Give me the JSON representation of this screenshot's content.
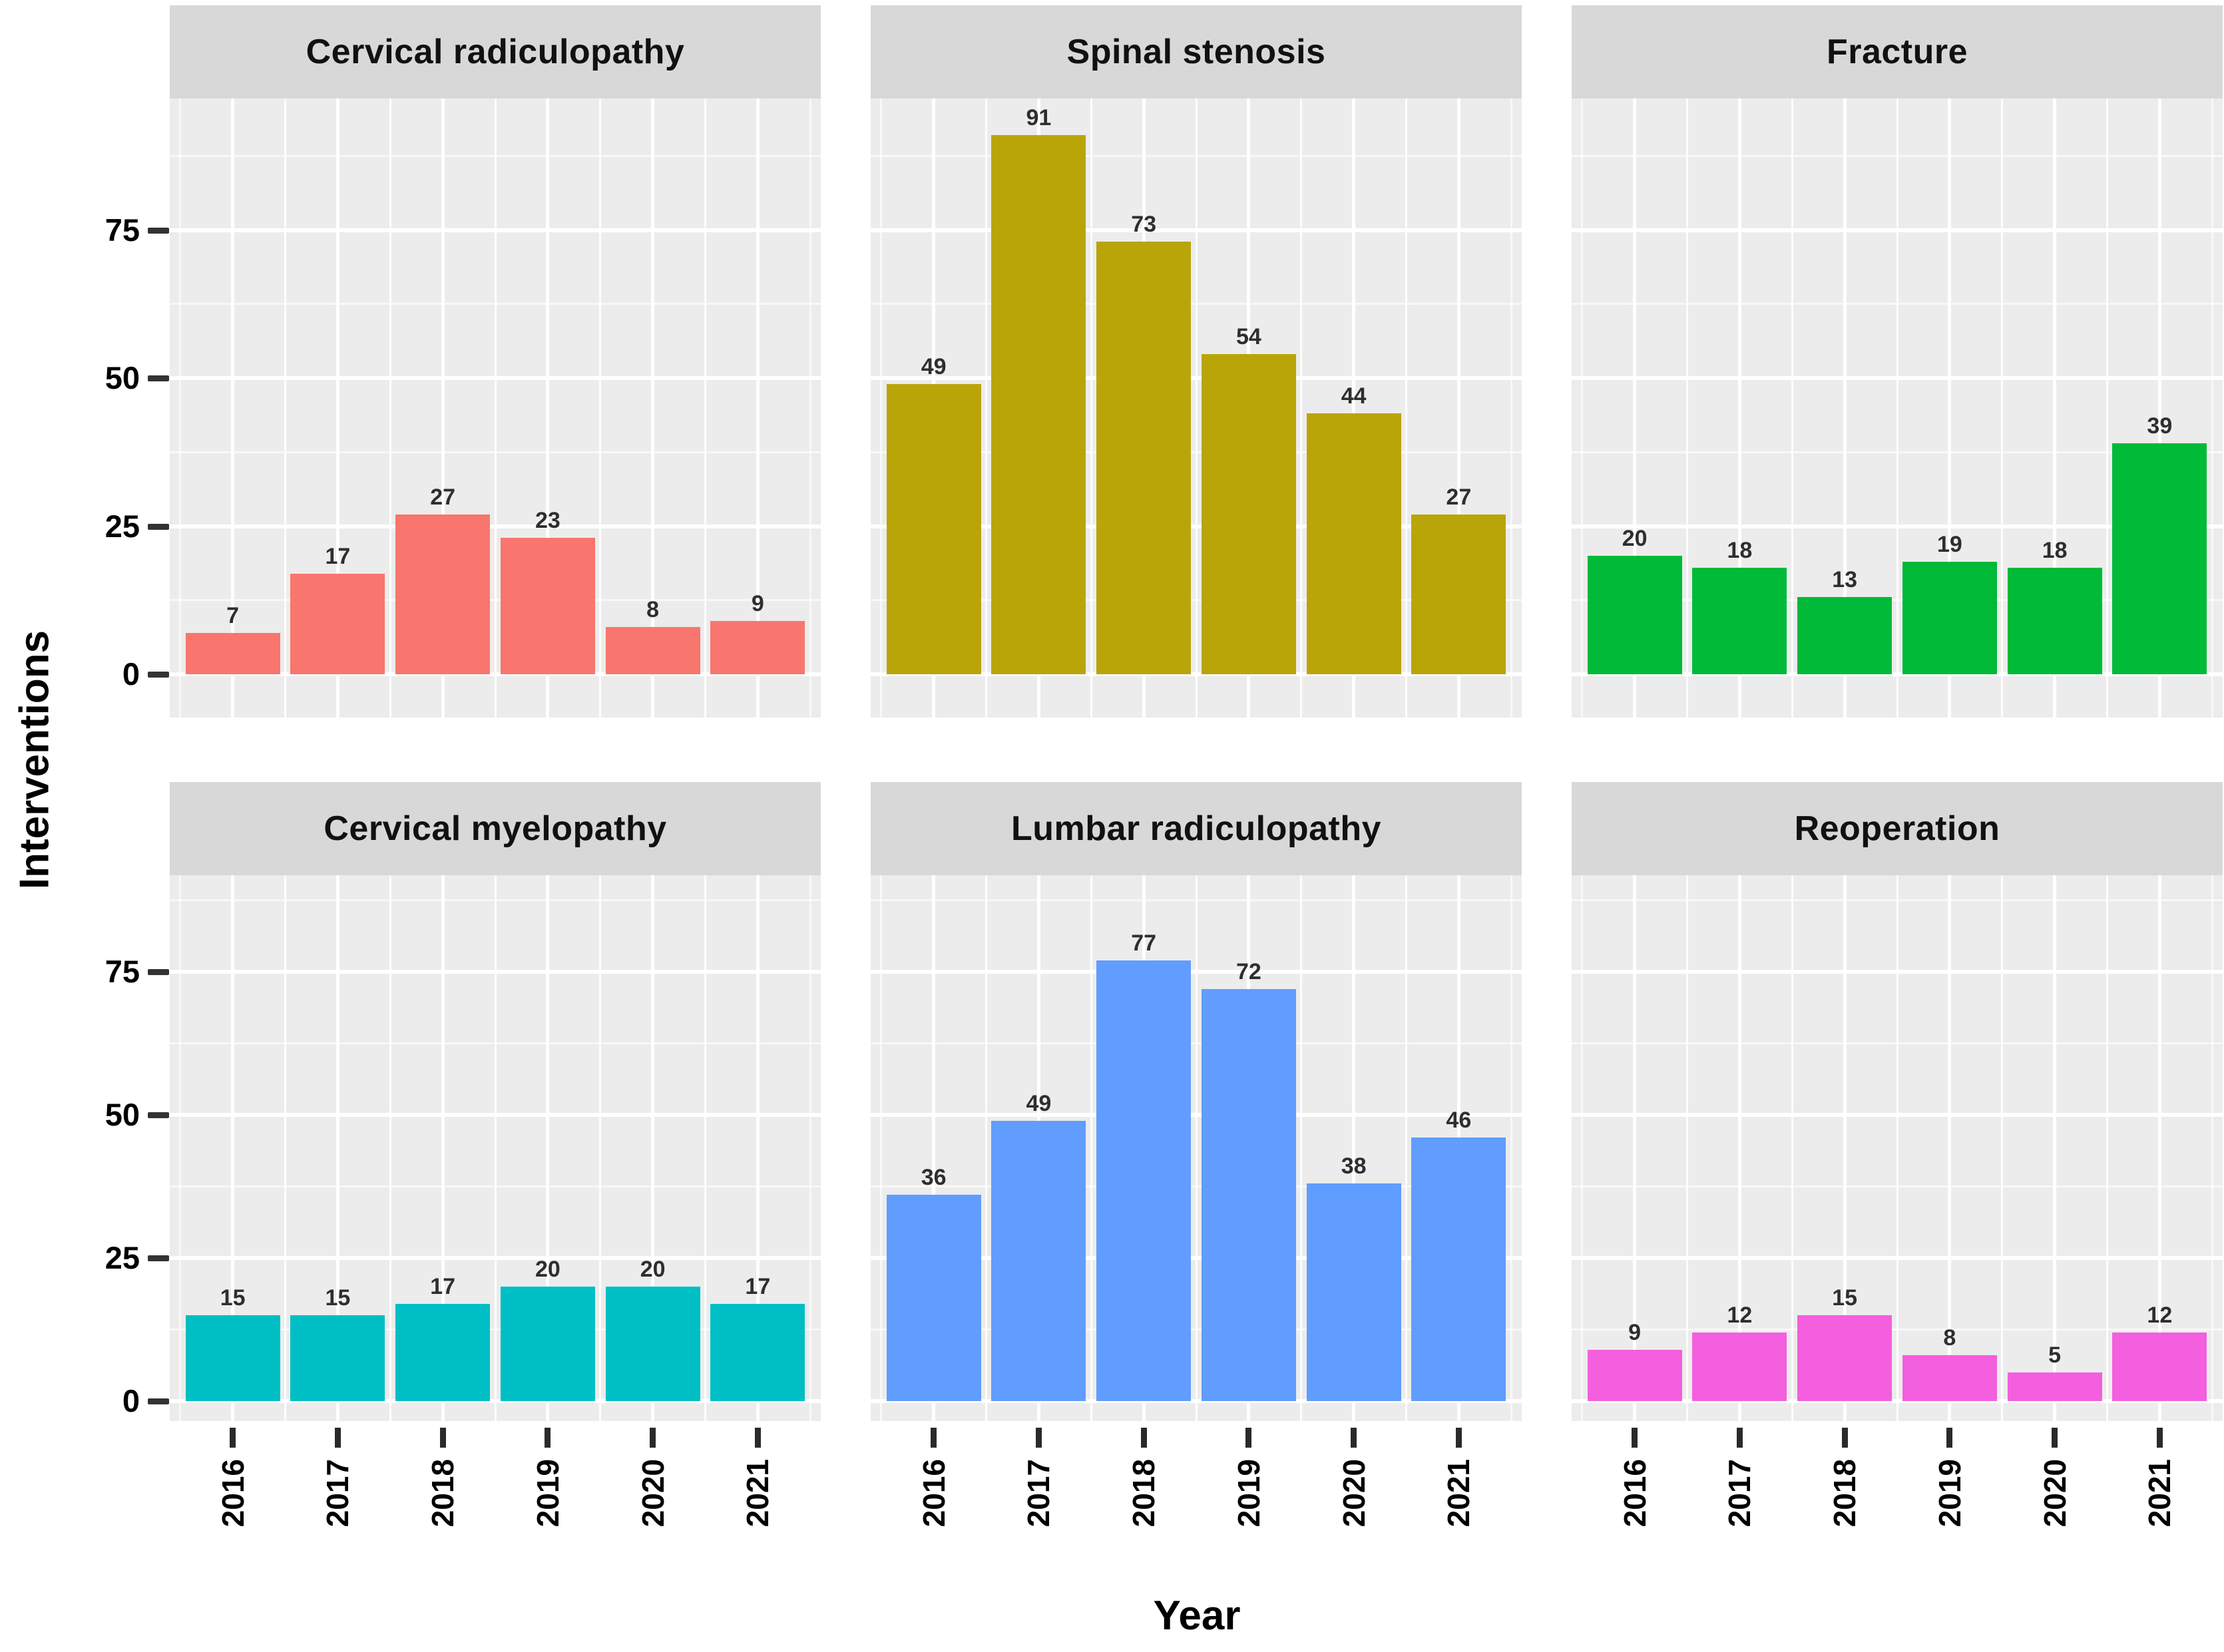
{
  "chart_data": {
    "type": "bar",
    "title": "",
    "xlabel": "Year",
    "ylabel": "Interventions",
    "categories": [
      "2016",
      "2017",
      "2018",
      "2019",
      "2020",
      "2021"
    ],
    "y_ticks": [
      0,
      25,
      50,
      75
    ],
    "ylim": [
      0,
      97
    ],
    "grid": true,
    "legend": false,
    "facet_layout": "2 rows x 3 columns",
    "facets": [
      {
        "title": "Cervical radiculopathy",
        "color": "#F8766D",
        "values": [
          7,
          17,
          27,
          23,
          8,
          9
        ]
      },
      {
        "title": "Spinal stenosis",
        "color": "#B9A508",
        "values": [
          49,
          91,
          73,
          54,
          44,
          27
        ]
      },
      {
        "title": "Fracture",
        "color": "#00BA38",
        "values": [
          20,
          18,
          13,
          19,
          18,
          39
        ]
      },
      {
        "title": "Cervical myelopathy",
        "color": "#00BFC4",
        "values": [
          15,
          15,
          17,
          20,
          20,
          17
        ]
      },
      {
        "title": "Lumbar radiculopathy",
        "color": "#619CFF",
        "values": [
          36,
          49,
          77,
          72,
          38,
          46
        ]
      },
      {
        "title": "Reoperation",
        "color": "#F35FDE",
        "values": [
          9,
          12,
          15,
          8,
          5,
          12
        ]
      }
    ],
    "panel_bg": "#ECECEC",
    "strip_bg": "#D8D8D8",
    "gridline_color": "#FFFFFF",
    "tick_color": "#333333",
    "bar_label_color": "#2E2E2E"
  }
}
